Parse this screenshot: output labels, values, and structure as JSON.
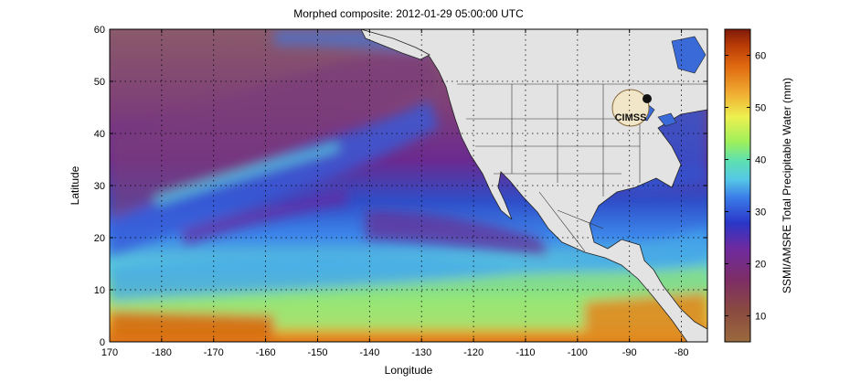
{
  "title": "Morphed composite: 2012-01-29 05:00:00 UTC",
  "xlabel": "Longitude",
  "ylabel": "Latitude",
  "colorbar_label": "SSMI/AMSRE Total Precipitable Water (mm)",
  "logo_text": "CIMSS",
  "map": {
    "x_ticks": [
      "170",
      "-180",
      "-170",
      "-160",
      "-150",
      "-140",
      "-130",
      "-120",
      "-110",
      "-100",
      "-90",
      "-80"
    ],
    "y_ticks": [
      "0",
      "10",
      "20",
      "30",
      "40",
      "50",
      "60"
    ],
    "lon_range": [
      170,
      285
    ],
    "lat_range": [
      0,
      60
    ],
    "grid": "dotted",
    "land_color": "#e3e3e3"
  },
  "colorbar": {
    "ticks": [
      "10",
      "20",
      "30",
      "40",
      "50",
      "60"
    ],
    "range": [
      5,
      65
    ],
    "colors": [
      "#9a6a3e",
      "#8a4a40",
      "#7d2d66",
      "#6e2aa0",
      "#2a36c8",
      "#3a7ae8",
      "#55c8e6",
      "#5ee0b0",
      "#9ef05a",
      "#eef050",
      "#f0a830",
      "#e06a10",
      "#b83a06",
      "#7e1a0a"
    ]
  }
}
